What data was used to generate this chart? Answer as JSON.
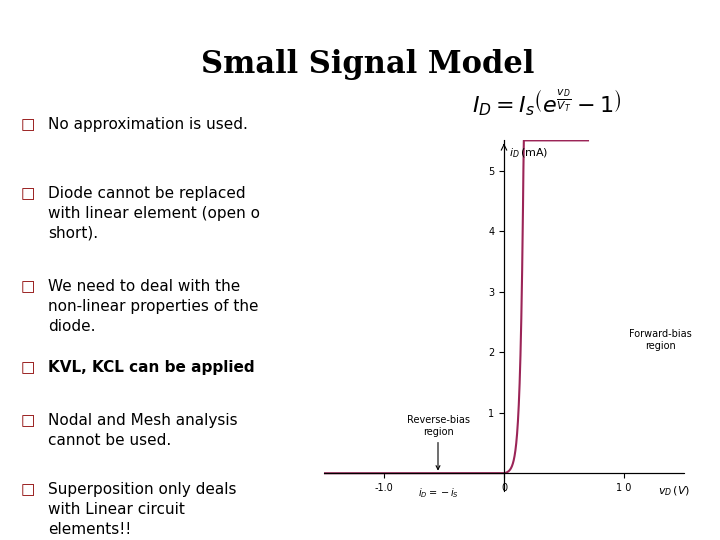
{
  "title": "Small Signal Model",
  "title_fontsize": 22,
  "title_color": "#000000",
  "background_color": "#ffffff",
  "left_bar_color": "#8B1A2A",
  "top_bar_color": "#999999",
  "bottom_bar_color": "#8B1A2A",
  "bullet_color": "#8B0000",
  "bullet_items": [
    "No approximation is used.",
    "Diode cannot be replaced\nwith linear element (open o\nshort).",
    "We need to deal with the\nnon-linear properties of the\ndiode.",
    "KVL, KCL can be applied",
    "Nodal and Mesh analysis\ncannot be used.",
    "Superposition only deals\nwith Linear circuit\nelements!!"
  ],
  "bold_items": [
    3
  ],
  "text_fontsize": 11,
  "diode_color": "#9B2457",
  "graph_xlim": [
    -1.5,
    1.5
  ],
  "graph_ylim": [
    -0.3,
    5.5
  ],
  "Is": 1e-05,
  "VT": 0.026,
  "scale_mA": 1000
}
